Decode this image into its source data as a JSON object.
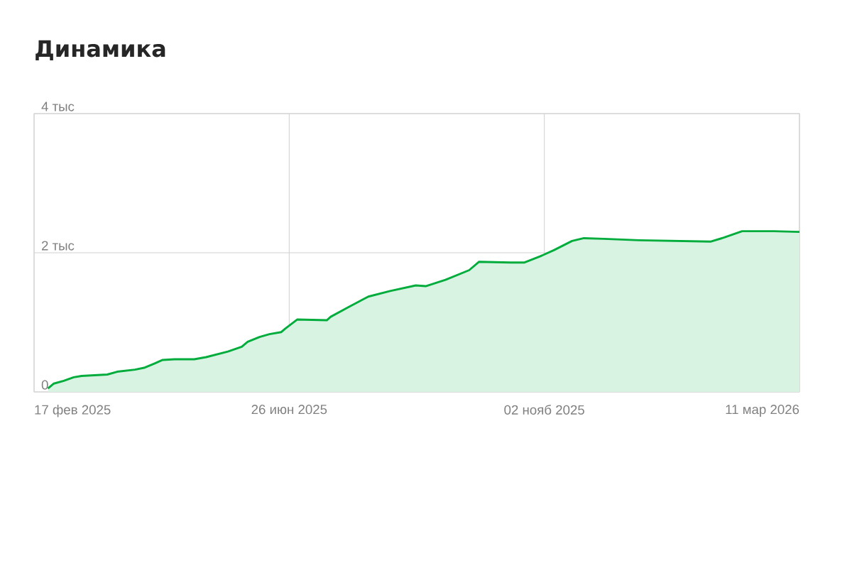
{
  "chart_data": {
    "type": "area",
    "title": "Динамика",
    "x": [
      "2025-02-24",
      "2025-02-27",
      "2025-03-04",
      "2025-03-09",
      "2025-03-13",
      "2025-03-26",
      "2025-03-31",
      "2025-04-09",
      "2025-04-14",
      "2025-04-19",
      "2025-04-23",
      "2025-04-29",
      "2025-05-09",
      "2025-05-15",
      "2025-05-26",
      "2025-06-02",
      "2025-06-05",
      "2025-06-11",
      "2025-06-16",
      "2025-06-22",
      "2025-06-24",
      "2025-06-30",
      "2025-07-15",
      "2025-07-17",
      "2025-07-26",
      "2025-08-05",
      "2025-08-16",
      "2025-08-29",
      "2025-09-03",
      "2025-09-13",
      "2025-09-25",
      "2025-09-30",
      "2025-10-16",
      "2025-10-23",
      "2025-10-31",
      "2025-11-07",
      "2025-11-16",
      "2025-11-22",
      "2025-12-02",
      "2025-12-20",
      "2026-01-25",
      "2026-02-01",
      "2026-02-10",
      "2026-02-26",
      "2026-03-11"
    ],
    "series": [
      {
        "color": "#00ac3c",
        "values": [
          0.05,
          0.12,
          0.16,
          0.21,
          0.23,
          0.25,
          0.29,
          0.32,
          0.35,
          0.41,
          0.46,
          0.47,
          0.47,
          0.5,
          0.58,
          0.65,
          0.72,
          0.79,
          0.83,
          0.86,
          0.91,
          1.04,
          1.03,
          1.08,
          1.22,
          1.37,
          1.45,
          1.53,
          1.52,
          1.61,
          1.75,
          1.87,
          1.86,
          1.86,
          1.95,
          2.04,
          2.17,
          2.21,
          2.2,
          2.18,
          2.16,
          2.22,
          2.31,
          2.31,
          2.3
        ]
      }
    ],
    "xlim": [
      "2025-02-17",
      "2026-03-11"
    ],
    "xticks": [
      {
        "value": "2025-02-17",
        "label": "17 фев 2025"
      },
      {
        "value": "2025-06-26",
        "label": "26 июн 2025"
      },
      {
        "value": "2025-11-02",
        "label": "02 нояб 2025"
      },
      {
        "value": "2026-03-11",
        "label": "11 мар 2026"
      }
    ],
    "ylim": [
      0,
      4
    ],
    "yticks": [
      0,
      {
        "value": 2,
        "label": "2 тыс"
      },
      {
        "value": 4,
        "label": "4 тыс"
      }
    ],
    "grid": true
  }
}
